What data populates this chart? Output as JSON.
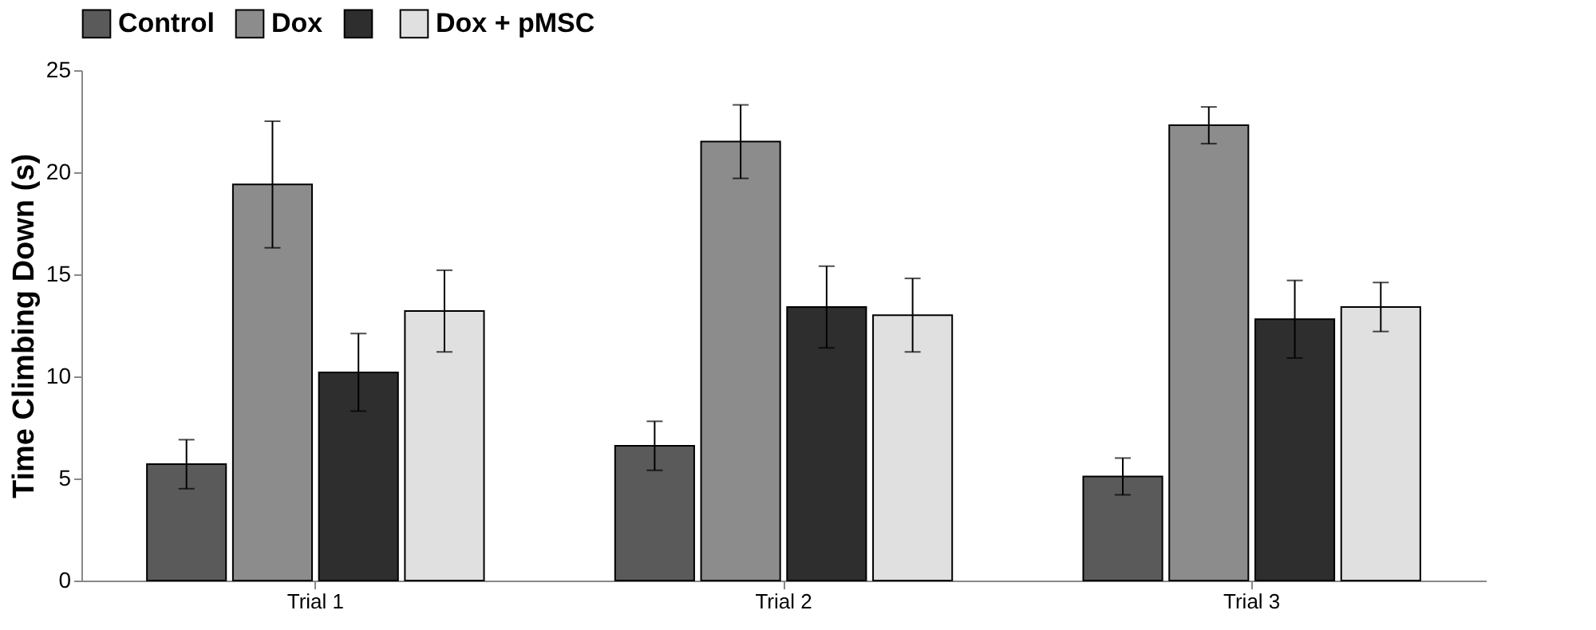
{
  "chart_data": {
    "type": "bar",
    "ylabel": "Time Climbing Down (s)",
    "categories": [
      "Trial 1",
      "Trial 2",
      "Trial 3"
    ],
    "series": [
      {
        "name": "Control",
        "color": "#5a5a5a",
        "values": [
          5.7,
          6.6,
          5.1
        ],
        "errors": [
          1.2,
          1.2,
          0.9
        ]
      },
      {
        "name": "Dox",
        "color": "#8c8c8c",
        "values": [
          19.4,
          21.5,
          22.3
        ],
        "errors": [
          3.1,
          1.8,
          0.9
        ]
      },
      {
        "color": "#2e2e2e",
        "values": [
          10.2,
          13.4,
          12.8
        ],
        "errors": [
          1.9,
          2.0,
          1.9
        ]
      },
      {
        "name": "Dox + pMSC",
        "color": "#e0e0e0",
        "values": [
          13.2,
          13.0,
          13.4
        ],
        "errors": [
          2.0,
          1.8,
          1.2
        ]
      }
    ],
    "ylim": [
      0,
      25
    ],
    "yticks": [
      0,
      5,
      10,
      15,
      20,
      25
    ],
    "grid": false,
    "legend": "top"
  }
}
